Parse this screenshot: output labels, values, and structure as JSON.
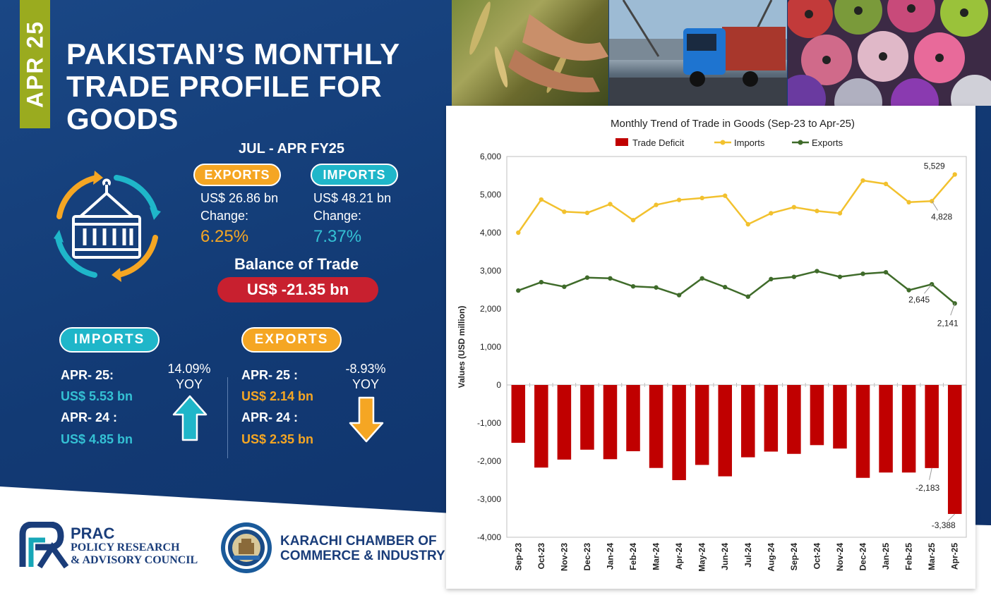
{
  "header": {
    "tag": "APR 25",
    "title_lines": [
      "PAKISTAN’S MONTHLY",
      "TRADE PROFILE FOR",
      "GOODS"
    ]
  },
  "summary": {
    "period": "JUL - APR FY25",
    "exports": {
      "label": "EXPORTS",
      "value": "US$ 26.86 bn",
      "change_label": "Change:",
      "change": "6.25%"
    },
    "imports": {
      "label": "IMPORTS",
      "value": "US$ 48.21 bn",
      "change_label": "Change:",
      "change": "7.37%"
    },
    "balance": {
      "label": "Balance of Trade",
      "value": "US$ -21.35 bn"
    }
  },
  "monthly": {
    "imports": {
      "label": "IMPORTS",
      "cur_label": "APR- 25:",
      "cur_value": "US$ 5.53 bn",
      "prev_label": "APR- 24 :",
      "prev_value": "US$ 4.85 bn",
      "yoy_value": "14.09%",
      "yoy_label": "YOY"
    },
    "exports": {
      "label": "EXPORTS",
      "cur_label": "APR- 25 :",
      "cur_value": "US$ 2.14 bn",
      "prev_label": "APR- 24 :",
      "prev_value": "US$ 2.35 bn",
      "yoy_value": "-8.93%",
      "yoy_label": "YOY"
    }
  },
  "footer": {
    "prac_abbr": "PRAC",
    "prac_line1": "POLICY RESEARCH",
    "prac_line2": "& ADVISORY COUNCIL",
    "kcci_line1": "KARACHI CHAMBER OF",
    "kcci_line2": "COMMERCE & INDUSTRY"
  },
  "colors": {
    "deficit": "#c00000",
    "imports": "#f2c12e",
    "exports": "#3f6b2a",
    "accent_orange": "#f5a623",
    "accent_teal": "#1fb6c9",
    "navy": "#14386e"
  },
  "chart_data": {
    "type": "bar",
    "title": "Monthly Trend of Trade in Goods (Sep-23 to Apr-25)",
    "ylabel": "Values (USD million)",
    "xlabel": "",
    "ylim": [
      -4000,
      6000
    ],
    "yticks": [
      6000,
      5000,
      4000,
      3000,
      2000,
      1000,
      0,
      -1000,
      -2000,
      -3000,
      -4000
    ],
    "ytick_labels": [
      "6,000",
      "5,000",
      "4,000",
      "3,000",
      "2,000",
      "1,000",
      "0",
      "-1,000",
      "-2,000",
      "-3,000",
      "-4,000"
    ],
    "legend_position": "top-center",
    "grid": false,
    "categories": [
      "Sep-23",
      "Oct-23",
      "Nov-23",
      "Dec-23",
      "Jan-24",
      "Feb-24",
      "Mar-24",
      "Apr-24",
      "May-24",
      "Jun-24",
      "Jul-24",
      "Aug-24",
      "Sep-24",
      "Oct-24",
      "Nov-24",
      "Dec-24",
      "Jan-25",
      "Feb-25",
      "Mar-25",
      "Apr-25"
    ],
    "series": [
      {
        "name": "Trade Deficit",
        "kind": "bar",
        "values": [
          -1520,
          -2170,
          -1960,
          -1700,
          -1950,
          -1740,
          -2180,
          -2500,
          -2100,
          -2400,
          -1900,
          -1750,
          -1810,
          -1580,
          -1670,
          -2440,
          -2300,
          -2300,
          -2183,
          -3388
        ]
      },
      {
        "name": "Imports",
        "kind": "line",
        "values": [
          4000,
          4870,
          4550,
          4520,
          4750,
          4330,
          4730,
          4860,
          4910,
          4970,
          4220,
          4510,
          4670,
          4570,
          4510,
          5370,
          5280,
          4800,
          4828,
          5529
        ]
      },
      {
        "name": "Exports",
        "kind": "line",
        "values": [
          2480,
          2700,
          2580,
          2820,
          2800,
          2590,
          2560,
          2360,
          2800,
          2570,
          2320,
          2780,
          2840,
          2990,
          2840,
          2920,
          2960,
          2490,
          2645,
          2141
        ]
      }
    ],
    "annotations": [
      {
        "series": "Imports",
        "category": "Apr-25",
        "text": "5,529"
      },
      {
        "series": "Imports",
        "category": "Mar-25",
        "text": "4,828"
      },
      {
        "series": "Exports",
        "category": "Mar-25",
        "text": "2,645"
      },
      {
        "series": "Exports",
        "category": "Apr-25",
        "text": "2,141"
      },
      {
        "series": "Trade Deficit",
        "category": "Mar-25",
        "text": "-2,183"
      },
      {
        "series": "Trade Deficit",
        "category": "Apr-25",
        "text": "-3,388"
      }
    ]
  }
}
